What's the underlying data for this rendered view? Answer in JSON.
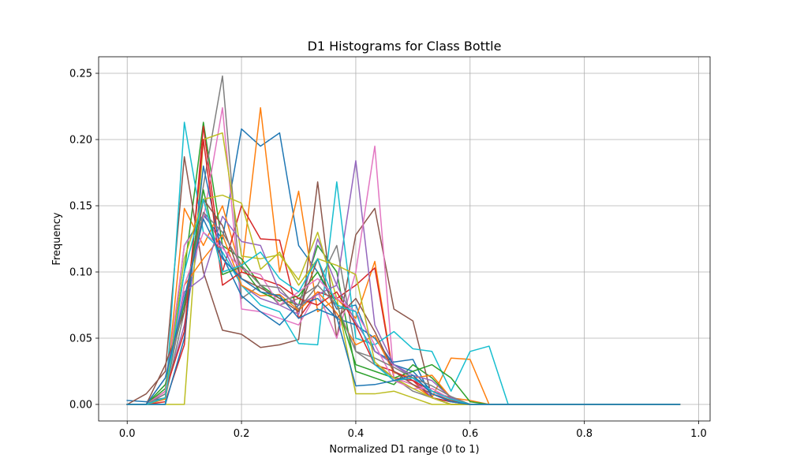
{
  "chart_data": {
    "type": "line",
    "title": "D1 Histograms for Class Bottle",
    "xlabel": "Normalized D1 range (0 to 1)",
    "ylabel": "Frequency",
    "xlim": [
      -0.05,
      1.02
    ],
    "ylim": [
      -0.0125,
      0.2625
    ],
    "xticks": [
      0.0,
      0.2,
      0.4,
      0.6,
      0.8,
      1.0
    ],
    "xtick_labels": [
      "0.0",
      "0.2",
      "0.4",
      "0.6",
      "0.8",
      "1.0"
    ],
    "yticks": [
      0.0,
      0.05,
      0.1,
      0.15,
      0.2,
      0.25
    ],
    "ytick_labels": [
      "0.00",
      "0.05",
      "0.10",
      "0.15",
      "0.20",
      "0.25"
    ],
    "grid": true,
    "legend": "none",
    "colors": [
      "#1f77b4",
      "#ff7f0e",
      "#2ca02c",
      "#d62728",
      "#9467bd",
      "#8c564b",
      "#e377c2",
      "#7f7f7f",
      "#bcbd22",
      "#17becf"
    ],
    "x": [
      0.0,
      0.0333,
      0.0667,
      0.1,
      0.1333,
      0.1667,
      0.2,
      0.2333,
      0.2667,
      0.3,
      0.3333,
      0.3667,
      0.4,
      0.4333,
      0.4667,
      0.5,
      0.5333,
      0.5667,
      0.6,
      0.6333,
      0.6667,
      0.7,
      0.7333,
      0.7667,
      0.8,
      0.8333,
      0.8667,
      0.9,
      0.9333,
      0.9667
    ],
    "series": [
      {
        "values": [
          0.003,
          0.002,
          0.005,
          0.12,
          0.143,
          0.125,
          0.208,
          0.195,
          0.205,
          0.12,
          0.1,
          0.072,
          0.075,
          0.04,
          0.032,
          0.034,
          0.005,
          0.002,
          0,
          0,
          0,
          0,
          0,
          0,
          0,
          0,
          0,
          0,
          0,
          0
        ]
      },
      {
        "values": [
          0,
          0,
          0.005,
          0.148,
          0.12,
          0.15,
          0.1,
          0.224,
          0.1,
          0.161,
          0.07,
          0.08,
          0.065,
          0.108,
          0.02,
          0.015,
          0.005,
          0.035,
          0.034,
          0,
          0,
          0,
          0,
          0,
          0,
          0,
          0,
          0,
          0,
          0
        ]
      },
      {
        "values": [
          0,
          0,
          0.012,
          0.1,
          0.213,
          0.12,
          0.11,
          0.09,
          0.08,
          0.075,
          0.12,
          0.1,
          0.025,
          0.02,
          0.015,
          0.03,
          0.02,
          0.005,
          0,
          0,
          0,
          0,
          0,
          0,
          0,
          0,
          0,
          0,
          0,
          0
        ]
      },
      {
        "values": [
          0,
          0,
          0.002,
          0.045,
          0.21,
          0.1,
          0.15,
          0.125,
          0.124,
          0.065,
          0.085,
          0.08,
          0.09,
          0.103,
          0.02,
          0.018,
          0.005,
          0.002,
          0,
          0,
          0,
          0,
          0,
          0,
          0,
          0,
          0,
          0,
          0,
          0
        ]
      },
      {
        "values": [
          0,
          0,
          0.008,
          0.06,
          0.145,
          0.12,
          0.09,
          0.08,
          0.075,
          0.068,
          0.125,
          0.09,
          0.184,
          0.06,
          0.03,
          0.02,
          0.005,
          0,
          0,
          0,
          0,
          0,
          0,
          0,
          0,
          0,
          0,
          0,
          0,
          0
        ]
      },
      {
        "values": [
          0,
          0.008,
          0.025,
          0.187,
          0.1,
          0.056,
          0.053,
          0.043,
          0.045,
          0.049,
          0.168,
          0.05,
          0.128,
          0.148,
          0.072,
          0.063,
          0.005,
          0,
          0,
          0,
          0,
          0,
          0,
          0,
          0,
          0,
          0,
          0,
          0,
          0
        ]
      },
      {
        "values": [
          0,
          0,
          0.01,
          0.12,
          0.14,
          0.224,
          0.072,
          0.07,
          0.065,
          0.06,
          0.085,
          0.05,
          0.1,
          0.195,
          0.02,
          0.015,
          0.01,
          0.002,
          0,
          0,
          0,
          0,
          0,
          0,
          0,
          0,
          0,
          0,
          0,
          0
        ]
      },
      {
        "values": [
          0,
          0,
          0.005,
          0.07,
          0.165,
          0.248,
          0.08,
          0.09,
          0.075,
          0.08,
          0.09,
          0.12,
          0.04,
          0.03,
          0.02,
          0.01,
          0.005,
          0,
          0,
          0,
          0,
          0,
          0,
          0,
          0,
          0,
          0,
          0,
          0,
          0
        ]
      },
      {
        "values": [
          0,
          0,
          0,
          0,
          0.2,
          0.205,
          0.112,
          0.11,
          0.113,
          0.094,
          0.13,
          0.08,
          0.008,
          0.008,
          0.01,
          0.005,
          0,
          0,
          0,
          0,
          0,
          0,
          0,
          0,
          0,
          0,
          0,
          0,
          0,
          0
        ]
      },
      {
        "values": [
          0,
          0,
          0,
          0.213,
          0.13,
          0.115,
          0.09,
          0.075,
          0.07,
          0.046,
          0.045,
          0.168,
          0.05,
          0.045,
          0.055,
          0.042,
          0.04,
          0.01,
          0.04,
          0.044,
          0,
          0,
          0,
          0,
          0,
          0,
          0,
          0,
          0,
          0
        ]
      },
      {
        "values": [
          0,
          0,
          0,
          0.05,
          0.18,
          0.112,
          0.082,
          0.07,
          0.06,
          0.075,
          0.08,
          0.065,
          0.06,
          0.05,
          0.03,
          0.025,
          0.01,
          0.005,
          0,
          0,
          0,
          0,
          0,
          0,
          0,
          0,
          0,
          0,
          0,
          0
        ]
      },
      {
        "values": [
          0,
          0,
          0.004,
          0.09,
          0.11,
          0.128,
          0.09,
          0.082,
          0.083,
          0.071,
          0.085,
          0.069,
          0.045,
          0.052,
          0.024,
          0.02,
          0.022,
          0.005,
          0.003,
          0,
          0,
          0,
          0,
          0,
          0,
          0,
          0,
          0,
          0,
          0
        ]
      },
      {
        "values": [
          0,
          0,
          0.015,
          0.075,
          0.162,
          0.098,
          0.104,
          0.085,
          0.078,
          0.082,
          0.1,
          0.076,
          0.03,
          0.025,
          0.02,
          0.025,
          0.03,
          0.02,
          0.002,
          0,
          0,
          0,
          0,
          0,
          0,
          0,
          0,
          0,
          0,
          0
        ]
      },
      {
        "values": [
          0,
          0,
          0.01,
          0.055,
          0.2,
          0.09,
          0.1,
          0.095,
          0.09,
          0.08,
          0.075,
          0.085,
          0.06,
          0.03,
          0.025,
          0.018,
          0.01,
          0.005,
          0,
          0,
          0,
          0,
          0,
          0,
          0,
          0,
          0,
          0,
          0,
          0
        ]
      },
      {
        "values": [
          0,
          0,
          0.02,
          0.085,
          0.096,
          0.142,
          0.123,
          0.12,
          0.085,
          0.075,
          0.083,
          0.09,
          0.062,
          0.04,
          0.03,
          0.022,
          0.018,
          0.005,
          0,
          0,
          0,
          0,
          0,
          0,
          0,
          0,
          0,
          0,
          0,
          0
        ]
      },
      {
        "values": [
          0,
          0,
          0.03,
          0.07,
          0.155,
          0.135,
          0.095,
          0.088,
          0.08,
          0.07,
          0.11,
          0.065,
          0.08,
          0.055,
          0.025,
          0.015,
          0.008,
          0.003,
          0,
          0,
          0,
          0,
          0,
          0,
          0,
          0,
          0,
          0,
          0,
          0
        ]
      },
      {
        "values": [
          0,
          0,
          0.01,
          0.09,
          0.13,
          0.118,
          0.102,
          0.098,
          0.075,
          0.085,
          0.095,
          0.08,
          0.07,
          0.045,
          0.018,
          0.012,
          0.012,
          0.004,
          0,
          0,
          0,
          0,
          0,
          0,
          0,
          0,
          0,
          0,
          0,
          0
        ]
      },
      {
        "values": [
          0,
          0,
          0.008,
          0.08,
          0.145,
          0.13,
          0.105,
          0.09,
          0.088,
          0.072,
          0.09,
          0.075,
          0.04,
          0.035,
          0.028,
          0.02,
          0.014,
          0.006,
          0,
          0,
          0,
          0,
          0,
          0,
          0,
          0,
          0,
          0,
          0,
          0
        ]
      },
      {
        "values": [
          0,
          0,
          0.005,
          0.11,
          0.155,
          0.158,
          0.152,
          0.102,
          0.115,
          0.09,
          0.11,
          0.105,
          0.098,
          0.032,
          0.02,
          0.012,
          0.005,
          0,
          0,
          0,
          0,
          0,
          0,
          0,
          0,
          0,
          0,
          0,
          0,
          0
        ]
      },
      {
        "values": [
          0,
          0,
          0.005,
          0.1,
          0.155,
          0.1,
          0.105,
          0.115,
          0.095,
          0.085,
          0.11,
          0.075,
          0.07,
          0.03,
          0.018,
          0.02,
          0.01,
          0.004,
          0,
          0,
          0,
          0,
          0,
          0,
          0,
          0,
          0,
          0,
          0,
          0
        ]
      },
      {
        "values": [
          0,
          0,
          0.02,
          0.08,
          0.14,
          0.11,
          0.095,
          0.085,
          0.082,
          0.065,
          0.072,
          0.066,
          0.014,
          0.015,
          0.018,
          0.022,
          0.008,
          0.002,
          0,
          0,
          0,
          0,
          0,
          0,
          0,
          0,
          0,
          0,
          0,
          0
        ]
      }
    ]
  }
}
